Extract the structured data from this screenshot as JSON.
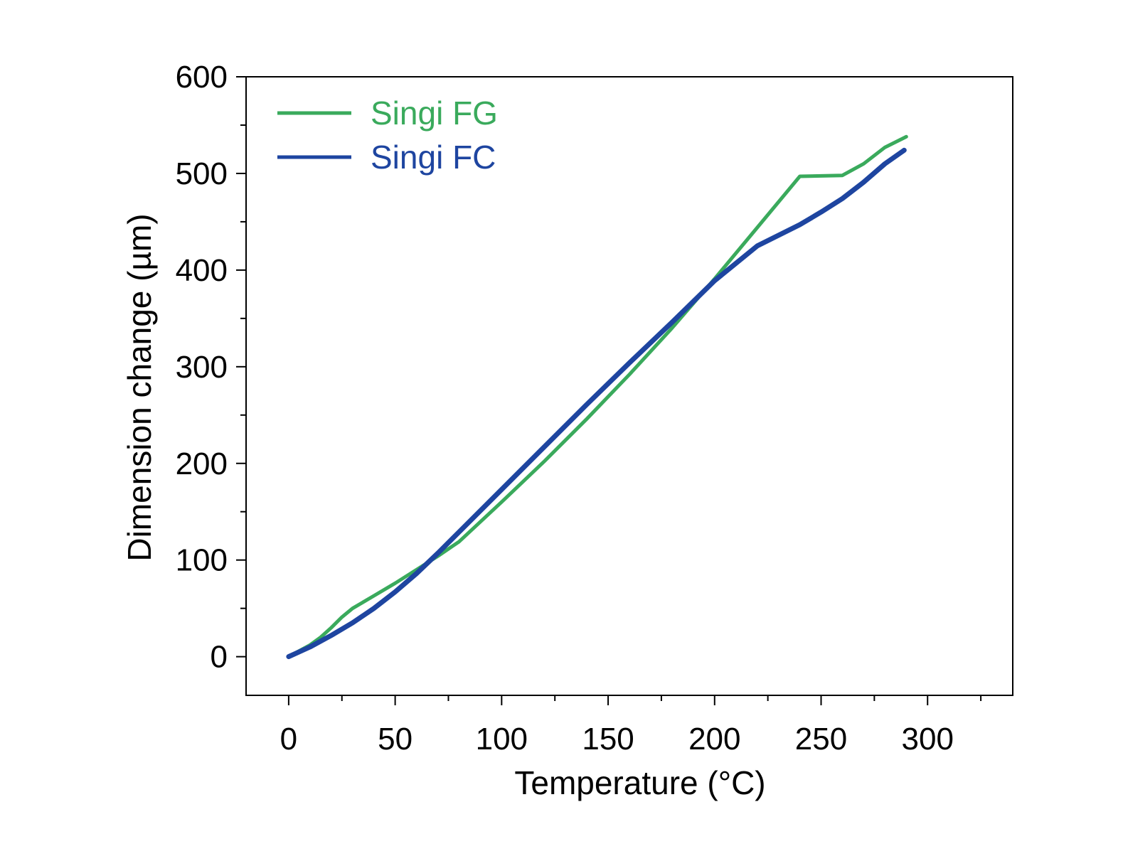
{
  "chart_data": {
    "type": "line",
    "title": "",
    "xlabel": "Temperature (°C)",
    "ylabel": "Dimension change (µm)",
    "xlim": [
      -20,
      340
    ],
    "ylim": [
      -40,
      600
    ],
    "xticks": [
      0,
      50,
      100,
      150,
      200,
      250,
      300
    ],
    "yticks": [
      0,
      100,
      200,
      300,
      400,
      500,
      600
    ],
    "x_tick_labels": [
      "0",
      "50",
      "100",
      "150",
      "200",
      "250",
      "300"
    ],
    "y_tick_labels": [
      "0",
      "100",
      "200",
      "300",
      "400",
      "500",
      "600"
    ],
    "grid": false,
    "legend_position": "top-left",
    "series": [
      {
        "name": "Singi FG",
        "color": "#3aaa5c",
        "x": [
          0,
          10,
          15,
          20,
          25,
          30,
          40,
          50,
          60,
          70,
          80,
          100,
          120,
          140,
          160,
          180,
          200,
          220,
          240,
          260,
          270,
          280,
          290
        ],
        "y": [
          0,
          12,
          20,
          30,
          41,
          50,
          63,
          76,
          90,
          104,
          119,
          160,
          202,
          246,
          292,
          340,
          391,
          444,
          497,
          498,
          510,
          527,
          538
        ]
      },
      {
        "name": "Singi FC",
        "color": "#1e45a0",
        "x": [
          0,
          10,
          20,
          30,
          40,
          50,
          60,
          70,
          80,
          100,
          120,
          140,
          160,
          180,
          200,
          220,
          240,
          250,
          260,
          270,
          280,
          289
        ],
        "y": [
          0,
          10,
          22,
          35,
          50,
          67,
          86,
          107,
          129,
          173,
          217,
          261,
          304,
          346,
          389,
          425,
          447,
          460,
          474,
          491,
          510,
          524
        ]
      }
    ]
  }
}
